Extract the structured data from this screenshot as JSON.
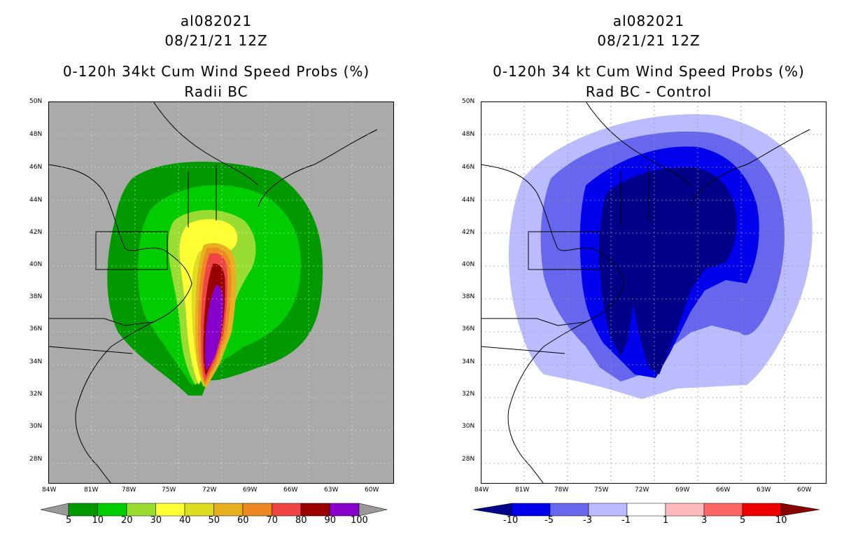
{
  "left": {
    "title1": "al082021",
    "title2": "08/21/21 12Z",
    "title3": "0-120h 34kt Cum Wind Speed Probs (%)",
    "title4": "Radii BC",
    "colorbar": {
      "labels": [
        "5",
        "10",
        "20",
        "30",
        "40",
        "50",
        "60",
        "70",
        "80",
        "90",
        "100"
      ],
      "colors": [
        "#009900",
        "#00cc00",
        "#99dd33",
        "#ffff33",
        "#dddd22",
        "#e6b020",
        "#ee8822",
        "#ee4444",
        "#990000",
        "#8800cc"
      ],
      "below_color": "#999999",
      "above_color": "#999999"
    },
    "background_color": "#aaaaaa"
  },
  "right": {
    "title1": "al082021",
    "title2": "08/21/21 12Z",
    "title3": "0-120h 34 kt Cum Wind Speed Probs (%)",
    "title4": "Rad BC - Control",
    "colorbar": {
      "labels": [
        "-10",
        "-5",
        "-3",
        "-1",
        "1",
        "3",
        "5",
        "10"
      ],
      "colors": [
        "#0000ee",
        "#6666ee",
        "#bbbbff",
        "#ffffff",
        "#ffbbbb",
        "#ff6666",
        "#ee0000"
      ],
      "below_color": "#000088",
      "above_color": "#880000"
    },
    "background_color": "#ffffff"
  },
  "axes": {
    "lat_labels": [
      "50N",
      "48N",
      "46N",
      "44N",
      "42N",
      "40N",
      "38N",
      "36N",
      "34N",
      "32N",
      "30N",
      "28N"
    ],
    "lon_labels": [
      "84W",
      "81W",
      "78W",
      "75W",
      "72W",
      "69W",
      "66W",
      "63W",
      "60W"
    ]
  }
}
